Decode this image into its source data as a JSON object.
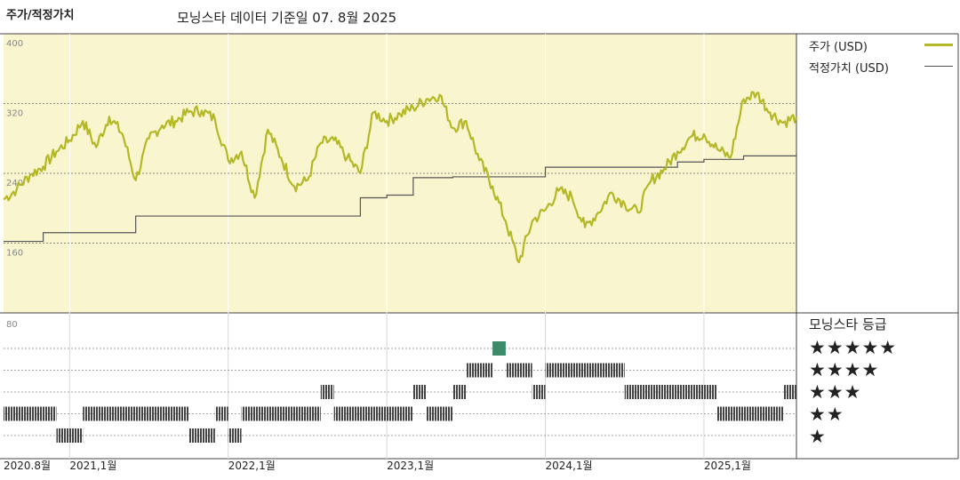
{
  "header": {
    "title": "주가/적정가치",
    "subtitle": "모닝스타 데이터 기준일 07. 8월 2025"
  },
  "legend": {
    "price": "주가 (USD)",
    "fair": "적정가치 (USD)",
    "price_color": "#b5b826",
    "fair_color": "#555555"
  },
  "rating_panel": {
    "title": "모닝스타 등급",
    "levels": [
      "★★★★★",
      "★★★★",
      "★★★",
      "★★",
      "★"
    ],
    "bar_color": "#444444",
    "highlight_color": "#3d8b6b"
  },
  "chart_data": {
    "type": "line",
    "y_axis": {
      "ylim": [
        80,
        400
      ],
      "ticks": [
        400,
        320,
        240,
        160,
        80
      ]
    },
    "x_axis": {
      "xlim": [
        "2020-08",
        "2025-08"
      ],
      "tick_labels": [
        "2020.8월",
        "2021,1월",
        "2022,1월",
        "2023,1월",
        "2024,1월",
        "2025,1월"
      ],
      "tick_dates": [
        "2020-08",
        "2021-01",
        "2022-01",
        "2023-01",
        "2024-01",
        "2025-01"
      ]
    },
    "series": [
      {
        "name": "주가 (USD)",
        "points": [
          [
            "2020-08",
            210
          ],
          [
            "2020-09",
            222
          ],
          [
            "2020-10",
            238
          ],
          [
            "2020-11",
            248
          ],
          [
            "2020-12",
            265
          ],
          [
            "2021-01",
            278
          ],
          [
            "2021-02",
            300
          ],
          [
            "2021-03",
            270
          ],
          [
            "2021-04",
            305
          ],
          [
            "2021-05",
            285
          ],
          [
            "2021-06",
            232
          ],
          [
            "2021-07",
            280
          ],
          [
            "2021-08",
            295
          ],
          [
            "2021-09",
            300
          ],
          [
            "2021-10",
            310
          ],
          [
            "2021-11",
            312
          ],
          [
            "2021-12",
            302
          ],
          [
            "2022-01",
            255
          ],
          [
            "2022-02",
            265
          ],
          [
            "2022-03",
            212
          ],
          [
            "2022-04",
            290
          ],
          [
            "2022-05",
            258
          ],
          [
            "2022-06",
            225
          ],
          [
            "2022-07",
            232
          ],
          [
            "2022-08",
            275
          ],
          [
            "2022-09",
            278
          ],
          [
            "2022-10",
            258
          ],
          [
            "2022-11",
            240
          ],
          [
            "2022-12",
            310
          ],
          [
            "2023-01",
            300
          ],
          [
            "2023-02",
            308
          ],
          [
            "2023-03",
            315
          ],
          [
            "2023-04",
            325
          ],
          [
            "2023-05",
            330
          ],
          [
            "2023-06",
            292
          ],
          [
            "2023-07",
            300
          ],
          [
            "2023-08",
            255
          ],
          [
            "2023-09",
            225
          ],
          [
            "2023-10",
            185
          ],
          [
            "2023-11",
            138
          ],
          [
            "2023-12",
            185
          ],
          [
            "2024-01",
            198
          ],
          [
            "2024-02",
            220
          ],
          [
            "2024-03",
            213
          ],
          [
            "2024-04",
            178
          ],
          [
            "2024-05",
            195
          ],
          [
            "2024-06",
            218
          ],
          [
            "2024-07",
            205
          ],
          [
            "2024-08",
            195
          ],
          [
            "2024-09",
            232
          ],
          [
            "2024-10",
            245
          ],
          [
            "2024-11",
            265
          ],
          [
            "2024-12",
            282
          ],
          [
            "2025-01",
            285
          ],
          [
            "2025-02",
            268
          ],
          [
            "2025-03",
            258
          ],
          [
            "2025-04",
            325
          ],
          [
            "2025-05",
            332
          ],
          [
            "2025-06",
            310
          ],
          [
            "2025-07",
            298
          ],
          [
            "2025-08",
            305
          ]
        ]
      },
      {
        "name": "적정가치 (USD)",
        "steps": [
          [
            "2020-08",
            162
          ],
          [
            "2020-11",
            172
          ],
          [
            "2021-06",
            191
          ],
          [
            "2022-11",
            212
          ],
          [
            "2023-01",
            215
          ],
          [
            "2023-03",
            235
          ],
          [
            "2023-06",
            236
          ],
          [
            "2024-01",
            247
          ],
          [
            "2024-11",
            253
          ],
          [
            "2025-01",
            256
          ],
          [
            "2025-04",
            260
          ],
          [
            "2025-08",
            262
          ]
        ]
      }
    ],
    "ratings": {
      "labels": [
        "5 stars",
        "4 stars",
        "3 stars",
        "2 stars",
        "1 star"
      ],
      "segments": [
        {
          "stars": 2,
          "from": "2020-08",
          "to": "2020-12"
        },
        {
          "stars": 1,
          "from": "2020-12",
          "to": "2021-02"
        },
        {
          "stars": 2,
          "from": "2021-02",
          "to": "2021-10"
        },
        {
          "stars": 1,
          "from": "2021-10",
          "to": "2021-12"
        },
        {
          "stars": 2,
          "from": "2021-12",
          "to": "2022-01"
        },
        {
          "stars": 1,
          "from": "2022-01",
          "to": "2022-02"
        },
        {
          "stars": 2,
          "from": "2022-02",
          "to": "2022-08"
        },
        {
          "stars": 3,
          "from": "2022-08",
          "to": "2022-09"
        },
        {
          "stars": 2,
          "from": "2022-09",
          "to": "2023-03"
        },
        {
          "stars": 3,
          "from": "2023-03",
          "to": "2023-04"
        },
        {
          "stars": 2,
          "from": "2023-04",
          "to": "2023-06"
        },
        {
          "stars": 3,
          "from": "2023-06",
          "to": "2023-07"
        },
        {
          "stars": 4,
          "from": "2023-07",
          "to": "2023-09"
        },
        {
          "stars": 5,
          "from": "2023-09",
          "to": "2023-10"
        },
        {
          "stars": 4,
          "from": "2023-10",
          "to": "2023-12"
        },
        {
          "stars": 3,
          "from": "2023-12",
          "to": "2024-01"
        },
        {
          "stars": 4,
          "from": "2024-01",
          "to": "2024-07"
        },
        {
          "stars": 3,
          "from": "2024-07",
          "to": "2025-02"
        },
        {
          "stars": 2,
          "from": "2025-02",
          "to": "2025-07"
        },
        {
          "stars": 3,
          "from": "2025-07",
          "to": "2025-08"
        }
      ]
    }
  }
}
